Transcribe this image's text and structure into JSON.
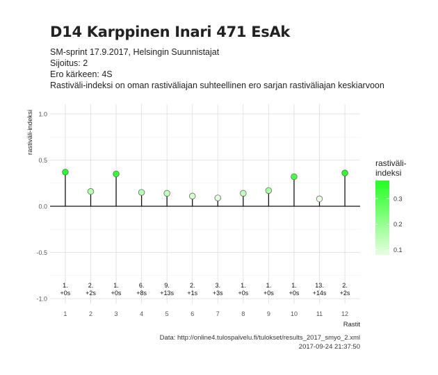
{
  "chart_data": {
    "type": "scatter",
    "title": "D14 Karppinen Inari 471 EsAk",
    "subtitle_lines": [
      "SM-sprint 17.9.2017, Helsingin Suunnistajat",
      "Sijoitus: 2",
      "Ero kärkeen: 4S",
      "Rastiväli-indeksi on oman rastiväliajan suhteellinen ero sarjan rastiväliajan keskiarvoon"
    ],
    "xlabel": "Rastit",
    "ylabel": "rastiväli-indeksi",
    "x": [
      1,
      2,
      3,
      4,
      5,
      6,
      7,
      8,
      9,
      10,
      11,
      12
    ],
    "x_ticks": [
      "1",
      "2",
      "3",
      "4",
      "5",
      "6",
      "7",
      "8",
      "9",
      "10",
      "11",
      "12"
    ],
    "y_ticks": [
      "-1.0",
      "-0.5",
      "0.0",
      "0.5",
      "1.0"
    ],
    "ylim": [
      -1.0,
      1.0
    ],
    "values": [
      0.37,
      0.16,
      0.35,
      0.15,
      0.14,
      0.11,
      0.09,
      0.14,
      0.17,
      0.32,
      0.08,
      0.36
    ],
    "annotations": [
      [
        "1.",
        "+0s"
      ],
      [
        "2.",
        "+2s"
      ],
      [
        "1.",
        "+0s"
      ],
      [
        "6.",
        "+8s"
      ],
      [
        "9.",
        "+13s"
      ],
      [
        "2.",
        "+1s"
      ],
      [
        "3.",
        "+3s"
      ],
      [
        "1.",
        "+0s"
      ],
      [
        "1.",
        "+0s"
      ],
      [
        "1.",
        "+0s"
      ],
      [
        "13.",
        "+14s"
      ],
      [
        "2.",
        "+2s"
      ]
    ],
    "legend": {
      "title_lines": [
        "rastiväli-",
        "indeksi"
      ],
      "ticks": [
        "0.3",
        "0.2",
        "0.1"
      ],
      "placement": "right",
      "color_low": "#e6ffdf",
      "color_high": "#22ff22"
    },
    "grid": true,
    "caption_lines": [
      "Data: http://online4.tulospalvelu.fi/tulokset/results_2017_smyo_2.xml",
      "2017-09-24 21:37:50"
    ]
  }
}
